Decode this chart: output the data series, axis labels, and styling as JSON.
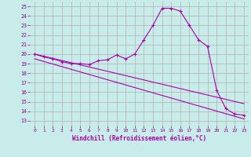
{
  "xlabel": "Windchill (Refroidissement éolien,°C)",
  "bg_color": "#c8ecea",
  "grid_color": "#b0b0b0",
  "line_color": "#aa00aa",
  "xlim": [
    -0.5,
    23.5
  ],
  "ylim": [
    12.5,
    25.5
  ],
  "xticks": [
    0,
    1,
    2,
    3,
    4,
    5,
    6,
    7,
    8,
    9,
    10,
    11,
    12,
    13,
    14,
    15,
    16,
    17,
    18,
    19,
    20,
    21,
    22,
    23
  ],
  "yticks": [
    13,
    14,
    15,
    16,
    17,
    18,
    19,
    20,
    21,
    22,
    23,
    24,
    25
  ],
  "curve1_x": [
    0,
    1,
    2,
    3,
    4,
    5,
    6,
    7,
    8,
    9,
    10,
    11,
    12,
    13,
    14,
    15,
    16,
    17,
    18,
    19,
    20,
    21,
    22,
    23
  ],
  "curve1_y": [
    20.0,
    19.7,
    19.5,
    19.2,
    19.0,
    19.0,
    18.9,
    19.3,
    19.4,
    19.9,
    19.5,
    20.0,
    21.5,
    23.0,
    24.8,
    24.8,
    24.5,
    23.0,
    21.5,
    20.8,
    16.2,
    14.3,
    13.7,
    13.6
  ],
  "line1_x": [
    0,
    23
  ],
  "line1_y": [
    20.0,
    14.8
  ],
  "line2_x": [
    0,
    23
  ],
  "line2_y": [
    19.5,
    13.2
  ]
}
